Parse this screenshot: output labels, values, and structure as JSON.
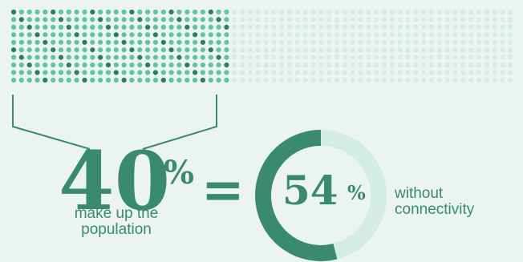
{
  "population_share": {
    "value": "40",
    "symbol": "%",
    "caption": "make up the population",
    "fraction_highlighted": 0.4
  },
  "equals_sign": "=",
  "connectivity": {
    "value": "54",
    "symbol": "%",
    "caption_line1": "without",
    "caption_line2": "connectivity",
    "fraction": 0.54
  },
  "colors": {
    "background": "#ebf4f0",
    "primary": "#3a8a72",
    "dot_light": "#5cc6a0",
    "dot_dark": "#2e7c63",
    "dot_faded": "#d6ebe3",
    "ring_light": "#d3ede4"
  }
}
